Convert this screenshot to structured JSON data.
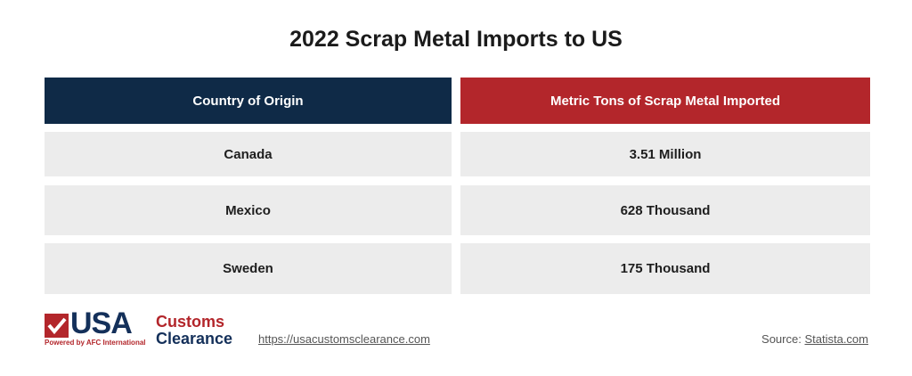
{
  "title": "2022 Scrap Metal Imports to US",
  "table": {
    "headers": [
      "Country of Origin",
      "Metric Tons of Scrap Metal Imported"
    ],
    "rows": [
      [
        "Canada",
        "3.51 Million"
      ],
      [
        "Mexico",
        "628 Thousand"
      ],
      [
        "Sweden",
        "175 Thousand"
      ]
    ]
  },
  "footer": {
    "logo": {
      "usa": "USA",
      "customs": "Customs",
      "clearance": "Clearance",
      "tagline": "Powered by AFC International"
    },
    "url": "https://usacustomsclearance.com",
    "source_label": "Source:",
    "source": "Statista.com"
  }
}
